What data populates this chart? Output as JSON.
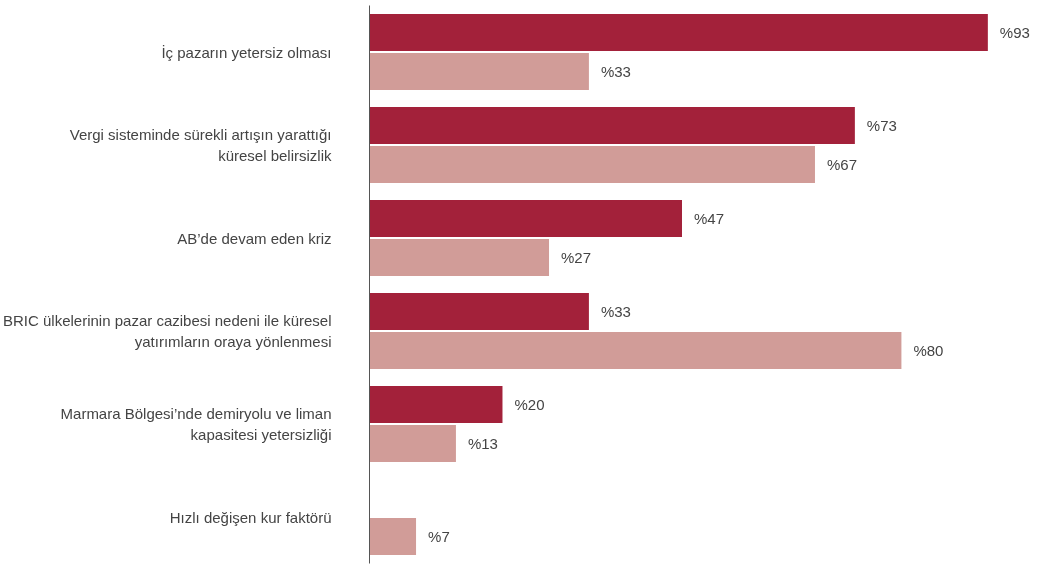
{
  "chart_data": {
    "type": "bar",
    "orientation": "horizontal",
    "categories": [
      "İç pazarın yetersiz olması",
      "Vergi sisteminde sürekli artışın yarattığı\nküresel belirsizlik",
      "AB’de devam eden kriz",
      "BRIC ülkelerinin pazar cazibesi nedeni ile küresel\nyatırımların oraya yönlenmesi",
      "Marmara Bölgesi’nde demiryolu ve liman\nkapasitesi yetersizliği",
      "Hızlı değişen kur faktörü"
    ],
    "series": [
      {
        "color": "#a3213a",
        "values": [
          93,
          73,
          47,
          33,
          20,
          null
        ],
        "value_labels": [
          "%93",
          "%73",
          "%47",
          "%33",
          "%20",
          null
        ]
      },
      {
        "color": "#d19c98",
        "values": [
          33,
          67,
          27,
          80,
          13,
          7
        ],
        "value_labels": [
          "%33",
          "%67",
          "%27",
          "%80",
          "%13",
          "%7"
        ]
      }
    ],
    "grid": false
  }
}
